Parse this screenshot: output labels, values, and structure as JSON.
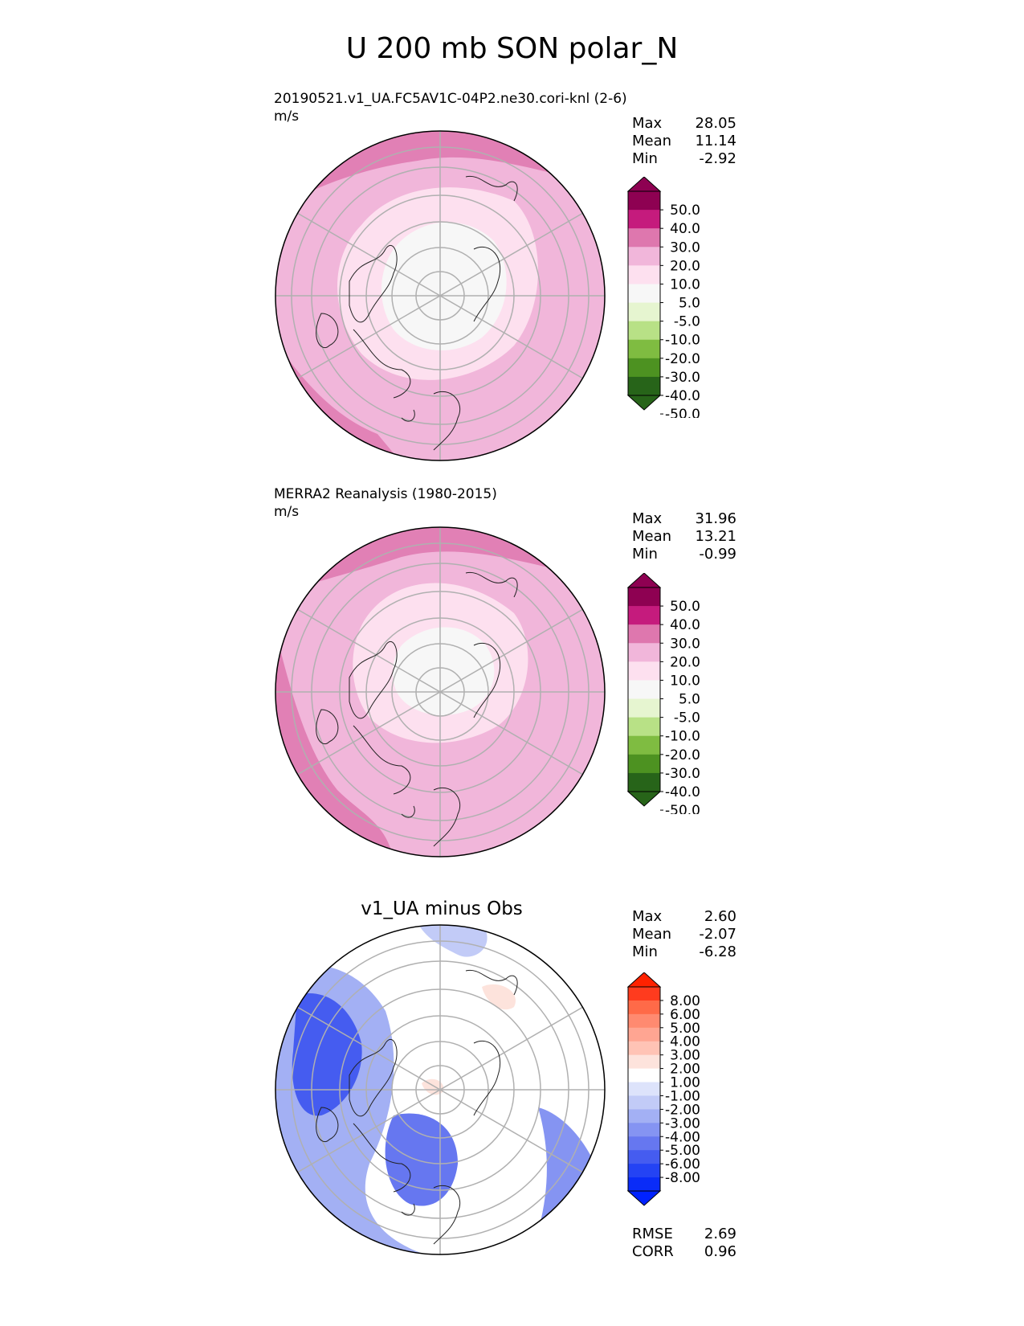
{
  "figure_title": "U 200 mb SON polar_N",
  "panels": [
    {
      "id": "test",
      "title": "20190521.v1_UA.FC5AV1C-04P2.ne30.cori-knl (2-6)",
      "units": "m/s",
      "stats": {
        "max_label": "Max",
        "max": "28.05",
        "mean_label": "Mean",
        "mean": "11.14",
        "min_label": "Min",
        "min": "-2.92"
      }
    },
    {
      "id": "ref",
      "title": "MERRA2 Reanalysis (1980-2015)",
      "units": "m/s",
      "stats": {
        "max_label": "Max",
        "max": "31.96",
        "mean_label": "Mean",
        "mean": "13.21",
        "min_label": "Min",
        "min": "-0.99"
      }
    },
    {
      "id": "diff",
      "title": "v1_UA minus Obs",
      "stats": {
        "max_label": "Max",
        "max": "2.60",
        "mean_label": "Mean",
        "mean": "-2.07",
        "min_label": "Min",
        "min": "-6.28"
      },
      "metrics": {
        "rmse_label": "RMSE",
        "rmse": "2.69",
        "corr_label": "CORR",
        "corr": "0.96"
      }
    }
  ],
  "chart_data": [
    {
      "type": "heatmap",
      "projection": "north polar stereographic",
      "title": "20190521.v1_UA.FC5AV1C-04P2.ne30.cori-knl (2-6)",
      "units": "m/s",
      "colorbar": {
        "ticks": [
          "50.0",
          "40.0",
          "30.0",
          "20.0",
          "10.0",
          "5.0",
          "-5.0",
          "-10.0",
          "-20.0",
          "-30.0",
          "-40.0",
          "-50.0"
        ],
        "colors": [
          "#8e0152",
          "#c51b7d",
          "#de77ae",
          "#f1b6da",
          "#fde0ef",
          "#f7f7f7",
          "#e6f5d0",
          "#b8e186",
          "#7fbc41",
          "#4d9221",
          "#276419"
        ],
        "extend": "both",
        "top_arrow": "#8e0152",
        "bottom_arrow": "#276419",
        "first_band": "#6d1a4d",
        "last_band": "#26631b"
      },
      "stats": {
        "max": 28.05,
        "mean": 11.14,
        "min": -2.92
      },
      "grid": true
    },
    {
      "type": "heatmap",
      "projection": "north polar stereographic",
      "title": "MERRA2 Reanalysis (1980-2015)",
      "units": "m/s",
      "colorbar": {
        "ticks": [
          "50.0",
          "40.0",
          "30.0",
          "20.0",
          "10.0",
          "5.0",
          "-5.0",
          "-10.0",
          "-20.0",
          "-30.0",
          "-40.0",
          "-50.0"
        ],
        "colors": [
          "#8e0152",
          "#c51b7d",
          "#de77ae",
          "#f1b6da",
          "#fde0ef",
          "#f7f7f7",
          "#e6f5d0",
          "#b8e186",
          "#7fbc41",
          "#4d9221",
          "#276419"
        ],
        "extend": "both",
        "top_arrow": "#8e0152",
        "bottom_arrow": "#276419",
        "first_band": "#6d1a4d",
        "last_band": "#26631b"
      },
      "stats": {
        "max": 31.96,
        "mean": 13.21,
        "min": -0.99
      },
      "grid": true
    },
    {
      "type": "heatmap",
      "projection": "north polar stereographic",
      "title": "v1_UA minus Obs",
      "colorbar": {
        "ticks": [
          "8.00",
          "6.00",
          "5.00",
          "4.00",
          "3.00",
          "2.00",
          "1.00",
          "-1.00",
          "-2.00",
          "-3.00",
          "-4.00",
          "-5.00",
          "-6.00",
          "-8.00"
        ],
        "colors": [
          "#ff3b1e",
          "#ff6a48",
          "#ff8a70",
          "#ffa592",
          "#ffc3b5",
          "#fde3dc",
          "#ffffff",
          "#dde3fb",
          "#c2cbf7",
          "#a3b0f4",
          "#8594f2",
          "#6677f0",
          "#455cf0",
          "#2443f4",
          "#0a2cf8"
        ],
        "extend": "both",
        "top_arrow": "#ff2200",
        "bottom_arrow": "#0022ff"
      },
      "stats": {
        "max": 2.6,
        "mean": -2.07,
        "min": -6.28
      },
      "rmse": 2.69,
      "corr": 0.96,
      "grid": true
    }
  ]
}
